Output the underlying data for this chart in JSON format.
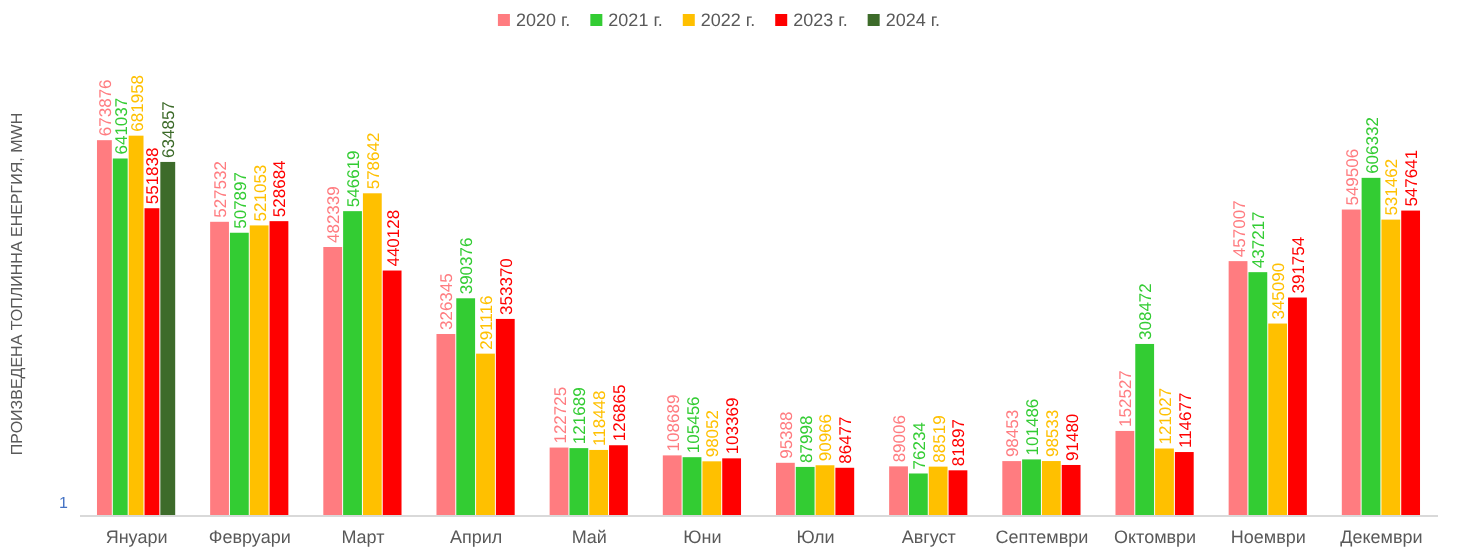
{
  "chart_data": {
    "type": "bar",
    "ylabel": "ПРОИЗВЕДЕНА ТОПЛИННА ЕНЕРГИЯ, MWH",
    "legend": "top",
    "data_labels": true,
    "annotations": [
      "1"
    ],
    "categories": [
      "Януари",
      "Февруари",
      "Март",
      "Април",
      "Май",
      "Юни",
      "Юли",
      "Август",
      "Септември",
      "Октомври",
      "Ноември",
      "Декември"
    ],
    "series": [
      {
        "name": "2020 г.",
        "color": "#ff7c80",
        "values": [
          673876,
          527532,
          482339,
          326345,
          122725,
          108689,
          95388,
          89006,
          98453,
          152527,
          457007,
          549506
        ]
      },
      {
        "name": "2021 г.",
        "color": "#33cc33",
        "values": [
          641037,
          507897,
          546619,
          390376,
          121689,
          105456,
          87998,
          76234,
          101486,
          308472,
          437217,
          606332
        ]
      },
      {
        "name": "2022 г.",
        "color": "#ffc000",
        "values": [
          681958,
          521053,
          578642,
          291116,
          118448,
          98052,
          90966,
          88519,
          98533,
          121027,
          345090,
          531462
        ]
      },
      {
        "name": "2023 г.",
        "color": "#ff0000",
        "values": [
          551838,
          528684,
          440128,
          353370,
          126865,
          103369,
          86477,
          81897,
          91480,
          114677,
          391754,
          547641
        ]
      },
      {
        "name": "2024 г.",
        "color": "#3d6b2a",
        "values": [
          634857,
          null,
          null,
          null,
          null,
          null,
          null,
          null,
          null,
          null,
          null,
          null
        ]
      }
    ]
  }
}
